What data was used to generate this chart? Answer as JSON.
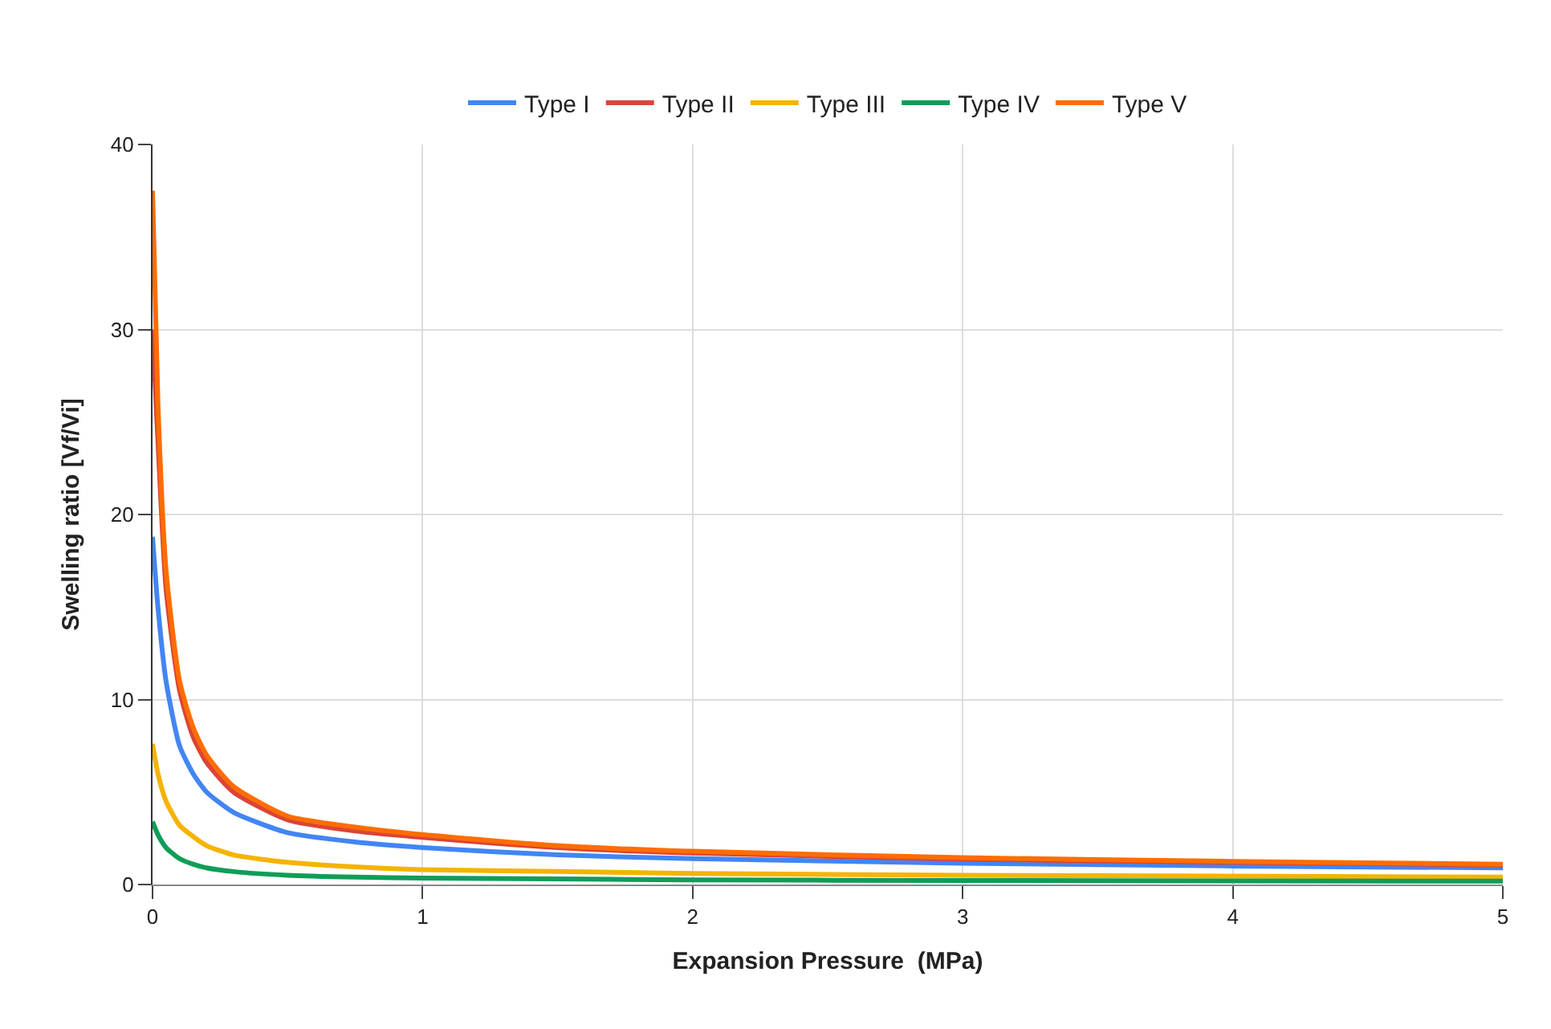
{
  "chart_data": {
    "type": "line",
    "xlabel": "Expansion Pressure  (MPa)",
    "ylabel": "Swelling ratio [Vf/Vi]",
    "x": [
      0,
      0.02,
      0.05,
      0.1,
      0.15,
      0.2,
      0.3,
      0.5,
      0.75,
      1,
      1.5,
      2,
      3,
      4,
      5
    ],
    "series": [
      {
        "name": "Type I",
        "color": "#4285f4",
        "values": [
          18.8,
          15,
          11,
          7.5,
          6,
          5,
          3.9,
          2.8,
          2.3,
          2.0,
          1.6,
          1.4,
          1.15,
          1.0,
          0.9
        ]
      },
      {
        "name": "Type II",
        "color": "#db4437",
        "values": [
          30,
          24,
          16,
          10.5,
          8,
          6.6,
          5.0,
          3.5,
          2.9,
          2.55,
          2.0,
          1.7,
          1.38,
          1.2,
          1.05
        ]
      },
      {
        "name": "Type III",
        "color": "#f4b400",
        "values": [
          7.6,
          6,
          4.5,
          3.2,
          2.6,
          2.1,
          1.6,
          1.2,
          0.95,
          0.8,
          0.7,
          0.6,
          0.5,
          0.45,
          0.4
        ]
      },
      {
        "name": "Type IV",
        "color": "#0f9d58",
        "values": [
          3.4,
          2.7,
          2.0,
          1.4,
          1.1,
          0.9,
          0.7,
          0.5,
          0.4,
          0.35,
          0.3,
          0.25,
          0.22,
          0.2,
          0.18
        ]
      },
      {
        "name": "Type V",
        "color": "#ff6d01",
        "values": [
          37.5,
          26,
          17,
          11,
          8.5,
          7,
          5.3,
          3.7,
          3.1,
          2.7,
          2.1,
          1.8,
          1.45,
          1.25,
          1.1
        ]
      }
    ],
    "xlim": [
      0,
      5
    ],
    "xticks": [
      0,
      1,
      2,
      3,
      4,
      5
    ],
    "ylim": [
      0,
      40
    ],
    "yticks": [
      0,
      10,
      20,
      30,
      40
    ],
    "grid": true,
    "legend": "top",
    "marker": "none",
    "line_style": "solid"
  }
}
